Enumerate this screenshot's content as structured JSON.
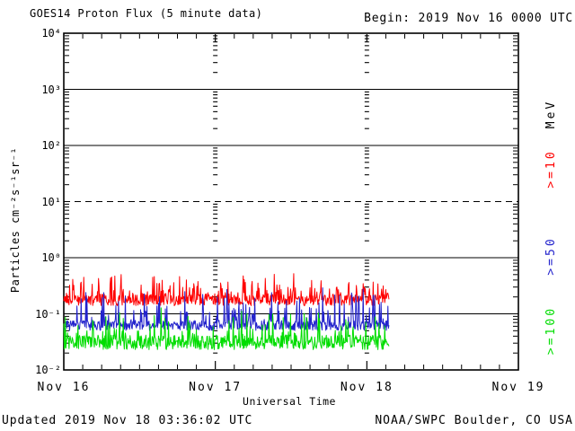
{
  "page": {
    "title": "GOES14 Proton Flux (5 minute data)",
    "begin_label": "Begin: 2019 Nov 16 0000 UTC",
    "footer_left": "Updated 2019 Nov 18 03:36:02 UTC",
    "footer_right": "NOAA/SWPC Boulder, CO USA",
    "background_color": "#FFFFFF",
    "text_color": "#000000"
  },
  "chart_data": {
    "type": "line",
    "title": "GOES14 Proton Flux (5 minute data)",
    "begin_annotation": "Begin: 2019 Nov 16 0000 UTC",
    "xlabel": "Universal Time",
    "ylabel": "Particles cm⁻²s⁻¹sr⁻¹",
    "y_scale": "log",
    "ylim": [
      0.01,
      10000
    ],
    "y_ticks": [
      {
        "label": "10⁴",
        "value": 10000
      },
      {
        "label": "10³",
        "value": 1000
      },
      {
        "label": "10²",
        "value": 100
      },
      {
        "label": "10¹",
        "value": 10
      },
      {
        "label": "10⁰",
        "value": 1
      },
      {
        "label": "10⁻¹",
        "value": 0.1
      },
      {
        "label": "10⁻²",
        "value": 0.01
      }
    ],
    "x_ticks": [
      {
        "label": "Nov 16",
        "day": 0
      },
      {
        "label": "Nov 17",
        "day": 1
      },
      {
        "label": "Nov 18",
        "day": 2
      },
      {
        "label": "Nov 19",
        "day": 3
      }
    ],
    "x_span_days": 3,
    "x_minor_tick_hours": 3,
    "grid": {
      "solid_lines_at": [
        1000,
        100,
        1,
        0.1
      ],
      "dashed_lines_at": [
        10
      ],
      "vertical_day_dash_columns_at_day": [
        1,
        2
      ]
    },
    "right_axis": {
      "unit_label": "MeV"
    },
    "data_start": "2019 Nov 16 0000 UTC",
    "data_end_approx": "2019 Nov 18 0335 UTC",
    "cadence_minutes": 5,
    "series": [
      {
        "label": ">=10",
        "color": "#FF0000",
        "approx_median_flux": 0.18,
        "approx_min_flux": 0.13,
        "approx_max_flux": 0.55,
        "noise_model": {
          "log10_baseline": -0.757,
          "log10_band": 0.2,
          "spike_probability": 0.35,
          "spike_max_log10": 0.42
        }
      },
      {
        "label": ">=50",
        "color": "#2222CC",
        "approx_median_flux": 0.062,
        "approx_min_flux": 0.05,
        "approx_max_flux": 0.32,
        "noise_model": {
          "log10_baseline": -1.208,
          "log10_band": 0.18,
          "spike_probability": 0.28,
          "spike_max_log10": 0.62
        }
      },
      {
        "label": ">=100",
        "color": "#00DD00",
        "approx_median_flux": 0.031,
        "approx_min_flux": 0.022,
        "approx_max_flux": 0.14,
        "noise_model": {
          "log10_baseline": -1.509,
          "log10_band": 0.26,
          "spike_probability": 0.25,
          "spike_max_log10": 0.52
        }
      }
    ]
  }
}
